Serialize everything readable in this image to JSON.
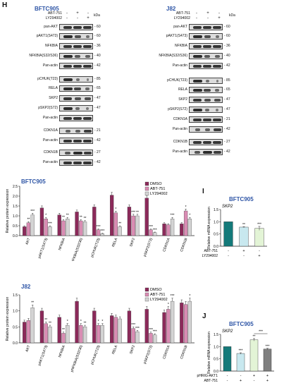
{
  "panels": {
    "H": {
      "letter": "H",
      "blots": [
        {
          "title": "BFTC905",
          "conditions": [
            {
              "label": "ABT-751",
              "signs": [
                "-",
                "+",
                "-"
              ]
            },
            {
              "label": "LY294002",
              "signs": [
                "-",
                "-",
                "+"
              ]
            }
          ],
          "kda": "kDa",
          "rows": [
            {
              "label": "pan-AKT",
              "mw": "60"
            },
            {
              "label": "pAKT1(S473)",
              "mw": "60"
            },
            {
              "label": "NFKBIA",
              "mw": "36"
            },
            {
              "label": "NFKBIA(S32/S36)",
              "mw": "40"
            },
            {
              "label": "Pan-actin",
              "mw": "42"
            },
            {
              "label": "pCHUK(T23)",
              "mw": "85"
            },
            {
              "label": "RELA",
              "mw": "65"
            },
            {
              "label": "SKP2",
              "mw": "47"
            },
            {
              "label": "pSKP2(S72)",
              "mw": "47"
            },
            {
              "label": "Pan-actin",
              "mw": ""
            },
            {
              "label": "CDKN1A",
              "mw": "21"
            },
            {
              "label": "Pan-actin",
              "mw": "42"
            },
            {
              "label": "CDKN1B",
              "mw": "27"
            },
            {
              "label": "Pan-actin",
              "mw": "42"
            }
          ]
        },
        {
          "title": "J82",
          "conditions": [
            {
              "label": "ABT-751",
              "signs": [
                "-",
                "+",
                "-"
              ]
            },
            {
              "label": "LY294002",
              "signs": [
                "-",
                "-",
                "+"
              ]
            }
          ],
          "kda": "kDa",
          "rows": [
            {
              "label": "pan-AKT",
              "mw": "60"
            },
            {
              "label": "pAKT1(S473)",
              "mw": "60"
            },
            {
              "label": "NFKBIA",
              "mw": "36"
            },
            {
              "label": "NFKBIA(S32/S36)",
              "mw": "40"
            },
            {
              "label": "Pan-actin",
              "mw": "42"
            },
            {
              "label": "pCHUK(T23)",
              "mw": "85"
            },
            {
              "label": "RELA",
              "mw": "65"
            },
            {
              "label": "SKP2",
              "mw": "47"
            },
            {
              "label": "pSKP2(S72)",
              "mw": "47"
            },
            {
              "label": "CDKN1A",
              "mw": "21"
            },
            {
              "label": "Pan-actin",
              "mw": "42"
            },
            {
              "label": "CDKN1B",
              "mw": "27"
            },
            {
              "label": "Pan-actin",
              "mw": "42"
            }
          ]
        }
      ]
    },
    "I": {
      "letter": "I"
    },
    "J": {
      "letter": "J",
      "conditions": [
        {
          "label": "pHRIG-AKT1",
          "signs": [
            "-",
            "-",
            "+",
            "+"
          ]
        },
        {
          "label": "ABT-751",
          "signs": [
            "-",
            "+",
            "-",
            "+"
          ]
        }
      ]
    }
  },
  "chart_data": [
    {
      "type": "bar",
      "title": "BFTC905",
      "ylabel": "Relative protein expression",
      "ylim": [
        0,
        2.5
      ],
      "yticks": [
        "0.0",
        "0.5",
        "1.0",
        "1.5",
        "2.0",
        "2.5"
      ],
      "categories": [
        "AKT",
        "pAKT1(S473)",
        "NFKBIA",
        "pNFKBIA(S32/36)",
        "pCHUK(T23)",
        "RELA",
        "SKP2",
        "pSKP2(S72)",
        "CDKN1A",
        "CDKN1B"
      ],
      "series": [
        {
          "name": "DMSO",
          "color": "#8b2a5a",
          "values": [
            0.45,
            1.4,
            1.05,
            1.2,
            1.45,
            2.05,
            1.45,
            1.9,
            0.6,
            0.6
          ]
        },
        {
          "name": "ABT-751",
          "color": "#d98cb3",
          "values": [
            0.65,
            0.85,
            0.75,
            0.75,
            0.3,
            1.15,
            1.0,
            0.3,
            0.55,
            1.25
          ]
        },
        {
          "name": "LY294002",
          "color": "#d4d4d4",
          "values": [
            1.05,
            0.45,
            0.85,
            0.7,
            0.1,
            0.45,
            1.0,
            0.15,
            0.85,
            0.85
          ]
        }
      ],
      "annotations": [
        {
          "category": 0,
          "series": 1,
          "text": "**"
        },
        {
          "category": 0,
          "series": 2,
          "text": "***"
        },
        {
          "category": 1,
          "series": 1,
          "text": "*"
        },
        {
          "category": 1,
          "series": 2,
          "text": "***"
        },
        {
          "category": 2,
          "series": 1,
          "text": "**"
        },
        {
          "category": 2,
          "series": 2,
          "text": "**"
        },
        {
          "category": 3,
          "series": 1,
          "text": "**"
        },
        {
          "category": 3,
          "series": 2,
          "text": "**"
        },
        {
          "category": 4,
          "series": 1,
          "text": "***"
        },
        {
          "category": 4,
          "series": 2,
          "text": "***"
        },
        {
          "category": 5,
          "series": 1,
          "text": "*"
        },
        {
          "category": 5,
          "series": 2,
          "text": "**"
        },
        {
          "category": 6,
          "series": 1,
          "text": "***"
        },
        {
          "category": 6,
          "series": 2,
          "text": "**"
        },
        {
          "category": 7,
          "series": 1,
          "text": "***"
        },
        {
          "category": 7,
          "series": 2,
          "text": "***"
        },
        {
          "category": 8,
          "series": 2,
          "text": "***"
        },
        {
          "category": 9,
          "series": 1,
          "text": "*"
        },
        {
          "category": 9,
          "series": 2,
          "text": "*"
        }
      ],
      "legend": "top-right"
    },
    {
      "type": "bar",
      "title": "J82",
      "ylabel": "Relative protein expression",
      "ylim": [
        0,
        1.5
      ],
      "yticks": [
        "0.0",
        "0.5",
        "1.0",
        "1.5"
      ],
      "categories": [
        "AKT",
        "pAKT1(S473)",
        "NFKBIA",
        "pNFKBIA(S32/36)",
        "pCHUK(T23)",
        "RELA",
        "SKP2",
        "pSKP2(S72)",
        "CDKN1A",
        "CDKN1B"
      ],
      "series": [
        {
          "name": "DMSO",
          "color": "#8b2a5a",
          "values": [
            0.65,
            1.0,
            0.8,
            1.3,
            1.0,
            0.85,
            1.0,
            1.05,
            0.95,
            1.25
          ]
        },
        {
          "name": "ABT-751",
          "color": "#d98cb3",
          "values": [
            0.7,
            0.6,
            0.3,
            0.55,
            0.55,
            0.8,
            0.45,
            0.3,
            1.05,
            1.2
          ]
        },
        {
          "name": "LY294002",
          "color": "#d4d4d4",
          "values": [
            1.1,
            0.5,
            0.55,
            0.5,
            0.55,
            0.75,
            0.35,
            0.25,
            1.3,
            1.3
          ]
        }
      ],
      "annotations": [
        {
          "category": 0,
          "series": 2,
          "text": "**"
        },
        {
          "category": 1,
          "series": 1,
          "text": "**"
        },
        {
          "category": 1,
          "series": 2,
          "text": "**"
        },
        {
          "category": 2,
          "series": 1,
          "text": "**"
        },
        {
          "category": 2,
          "series": 2,
          "text": "*"
        },
        {
          "category": 3,
          "series": 1,
          "text": "*"
        },
        {
          "category": 3,
          "series": 2,
          "text": "**"
        },
        {
          "category": 4,
          "series": 1,
          "text": "*"
        },
        {
          "category": 4,
          "series": 2,
          "text": "*"
        },
        {
          "category": 6,
          "series": 1,
          "text": "***"
        },
        {
          "category": 6,
          "series": 2,
          "text": "***"
        },
        {
          "category": 7,
          "series": 1,
          "text": "***"
        },
        {
          "category": 7,
          "series": 2,
          "text": "***"
        },
        {
          "category": 8,
          "series": 1,
          "text": "*"
        },
        {
          "category": 8,
          "series": 2,
          "text": "***"
        },
        {
          "category": 9,
          "series": 2,
          "text": "*"
        }
      ],
      "legend": "top-right"
    },
    {
      "type": "bar",
      "title": "BFTC905",
      "subtitle": "SKP2",
      "ylabel": "Relative mRNA expression",
      "ylim": [
        0,
        1.5
      ],
      "yticks": [
        "0.0",
        "0.5",
        "1.0",
        "1.5"
      ],
      "series": [
        {
          "colors": [
            "#147a7a",
            "#c8e8ef",
            "#e3f4d6"
          ],
          "values": [
            1.0,
            0.78,
            0.73
          ],
          "errors": [
            0,
            0.02,
            0.08
          ]
        }
      ],
      "annotations": [
        {
          "bar": 1,
          "text": "**"
        },
        {
          "bar": 2,
          "text": "***"
        }
      ],
      "conditions": [
        {
          "label": "ABT-751",
          "signs": [
            "-",
            "+",
            "-"
          ]
        },
        {
          "label": "LY294002",
          "signs": [
            "-",
            "-",
            "+"
          ]
        }
      ]
    },
    {
      "type": "bar",
      "title": "BFTC905",
      "subtitle": "SKP2",
      "ylabel": "Relative mRNA expression",
      "ylim": [
        0,
        1.5
      ],
      "yticks": [
        "0.0",
        "0.5",
        "1.0",
        "1.5"
      ],
      "series": [
        {
          "colors": [
            "#147a7a",
            "#c8e8ef",
            "#e3f4d6",
            "#7f7f7f"
          ],
          "values": [
            1.0,
            0.72,
            1.28,
            0.9
          ],
          "errors": [
            0,
            0.03,
            0.05,
            0.03
          ]
        }
      ],
      "annotations": [
        {
          "bar": 1,
          "text": "***"
        },
        {
          "bar": 2,
          "text": "**"
        },
        {
          "bar": 3,
          "text": "***"
        }
      ],
      "bracket": {
        "from": 2,
        "to": 3,
        "text": "***"
      }
    }
  ]
}
